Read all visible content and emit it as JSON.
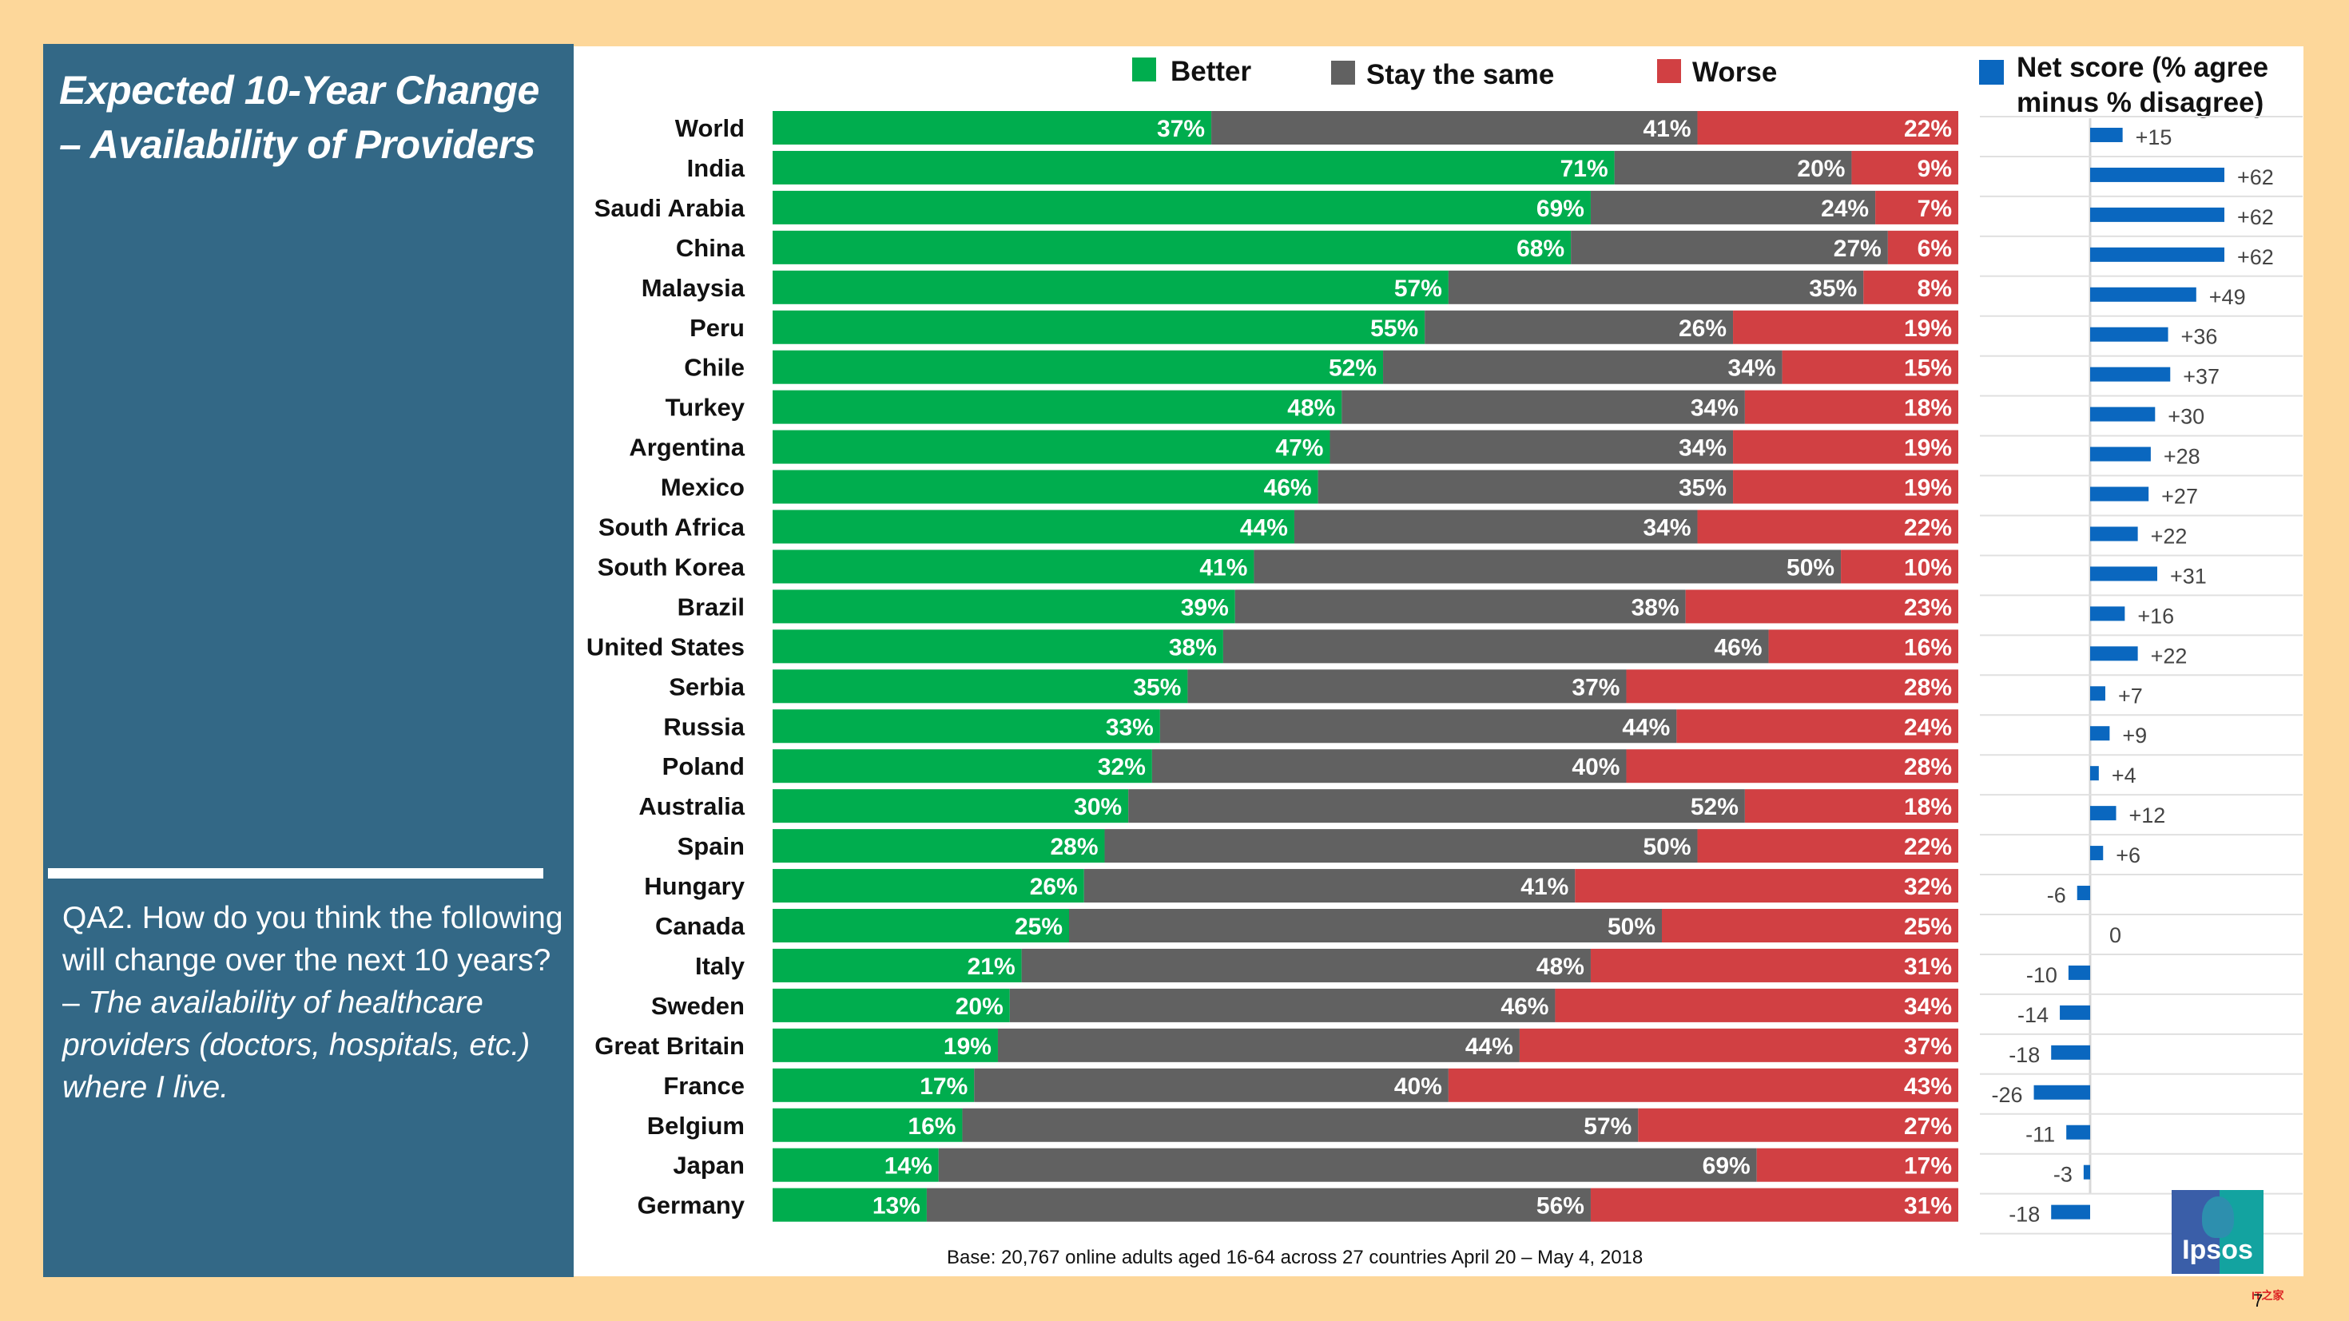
{
  "title": {
    "line1": "Expected 10-Year Change",
    "line2": "– Availability of Providers"
  },
  "question": {
    "plain": "QA2. How do you think the following will change over the next 10 years? – ",
    "italic": "The availability of healthcare providers (doctors, hospitals, etc.) where I live."
  },
  "base_note": "Base: 20,767 online adults aged 16-64 across 27 countries  April 20 – May 4, 2018",
  "logo_text": "Ipsos",
  "page_number": "7",
  "watermark": "IT之家",
  "colors": {
    "better": "#00ad4e",
    "same": "#616161",
    "worse": "#d14043",
    "net": "#0a67bf",
    "panel": "#336886",
    "background": "#fdd79a"
  },
  "chart_data": [
    {
      "type": "bar",
      "stacked": true,
      "orientation": "horizontal",
      "title": "Expected 10-Year Change – Availability of Providers",
      "xlabel": "",
      "ylabel": "",
      "xlim": [
        0,
        100
      ],
      "unit": "%",
      "legend_position": "top",
      "categories": [
        "World",
        "India",
        "Saudi Arabia",
        "China",
        "Malaysia",
        "Peru",
        "Chile",
        "Turkey",
        "Argentina",
        "Mexico",
        "South Africa",
        "South Korea",
        "Brazil",
        "United States",
        "Serbia",
        "Russia",
        "Poland",
        "Australia",
        "Spain",
        "Hungary",
        "Canada",
        "Italy",
        "Sweden",
        "Great Britain",
        "France",
        "Belgium",
        "Japan",
        "Germany"
      ],
      "series": [
        {
          "name": "Better",
          "values": [
            37,
            71,
            69,
            68,
            57,
            55,
            52,
            48,
            47,
            46,
            44,
            41,
            39,
            38,
            35,
            33,
            32,
            30,
            28,
            26,
            25,
            21,
            20,
            19,
            17,
            16,
            14,
            13
          ]
        },
        {
          "name": "Stay the same",
          "values": [
            41,
            20,
            24,
            27,
            35,
            26,
            34,
            34,
            34,
            35,
            34,
            50,
            38,
            46,
            37,
            44,
            40,
            52,
            50,
            41,
            50,
            48,
            46,
            44,
            40,
            57,
            69,
            56
          ]
        },
        {
          "name": "Worse",
          "values": [
            22,
            9,
            7,
            6,
            8,
            19,
            15,
            18,
            19,
            19,
            22,
            10,
            23,
            16,
            28,
            24,
            28,
            18,
            22,
            32,
            25,
            31,
            34,
            37,
            43,
            27,
            17,
            31
          ]
        }
      ]
    },
    {
      "type": "bar",
      "orientation": "horizontal",
      "title": "Net score (% agree minus % disagree)",
      "categories": [
        "World",
        "India",
        "Saudi Arabia",
        "China",
        "Malaysia",
        "Peru",
        "Chile",
        "Turkey",
        "Argentina",
        "Mexico",
        "South Africa",
        "South Korea",
        "Brazil",
        "United States",
        "Serbia",
        "Russia",
        "Poland",
        "Australia",
        "Spain",
        "Hungary",
        "Canada",
        "Italy",
        "Sweden",
        "Great Britain",
        "France",
        "Belgium",
        "Japan",
        "Germany"
      ],
      "series": [
        {
          "name": "Net score (% agree minus % disagree)",
          "values": [
            15,
            62,
            62,
            62,
            49,
            36,
            37,
            30,
            28,
            27,
            22,
            31,
            16,
            22,
            7,
            9,
            4,
            12,
            6,
            -6,
            0,
            -10,
            -14,
            -18,
            -26,
            -11,
            -3,
            -18
          ]
        }
      ],
      "labels": [
        "+15",
        "+62",
        "+62",
        "+62",
        "+49",
        "+36",
        "+37",
        "+30",
        "+28",
        "+27",
        "+22",
        "+31",
        "+16",
        "+22",
        "+7",
        "+9",
        "+4",
        "+12",
        "+6",
        "-6",
        "0",
        "-10",
        "-14",
        "-18",
        "-26",
        "-11",
        "-3",
        "-18"
      ]
    }
  ]
}
